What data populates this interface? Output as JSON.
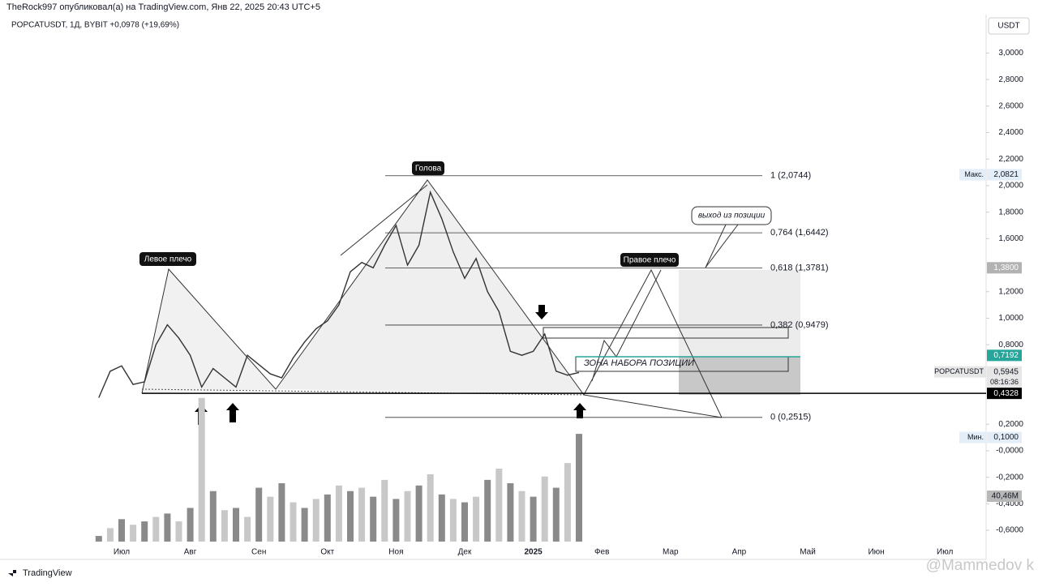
{
  "header": {
    "attribution": "TheRock997 опубликовал(а) на TradingView.com, Янв 22, 2025 20:43 UTC+5",
    "symbol_line": "POPCATUSDT, 1Д, BYBIT  +0,0978 (+19,69%)",
    "currency": "USDT"
  },
  "chart_data": {
    "type": "line",
    "categories": [
      null,
      null,
      "Июл",
      null,
      null,
      null,
      null,
      null,
      "Авг",
      null,
      null,
      null,
      null,
      null,
      "Сен",
      null,
      null,
      null,
      null,
      null,
      "Окт",
      null,
      null,
      null,
      null,
      null,
      "Ноя",
      null,
      null,
      null,
      null,
      null,
      "Дек",
      null,
      null,
      null,
      null,
      null,
      "2025",
      null,
      null,
      null,
      null,
      null,
      "Фев",
      null,
      null,
      null,
      null,
      null,
      "Мар",
      null,
      null,
      null,
      null,
      null,
      "Апр",
      null,
      null,
      null,
      null,
      null,
      "Май",
      null,
      null,
      null,
      null,
      null,
      "Июн",
      null,
      null,
      null,
      null,
      null,
      "Июл",
      null
    ],
    "series": [
      {
        "name": "POPCATUSDT",
        "color": "#333333",
        "values": [
          0.4,
          0.6,
          0.64,
          0.5,
          0.52,
          0.8,
          0.95,
          0.85,
          0.72,
          0.48,
          0.62,
          0.55,
          0.48,
          0.72,
          0.65,
          0.58,
          0.55,
          0.7,
          0.82,
          0.92,
          0.98,
          1.1,
          1.35,
          1.42,
          1.38,
          1.55,
          1.7,
          1.4,
          1.55,
          1.95,
          1.75,
          1.5,
          1.3,
          1.45,
          1.2,
          1.05,
          0.75,
          0.72,
          0.75,
          0.88,
          0.6,
          0.57,
          0.59,
          null,
          null,
          null,
          null,
          null,
          null,
          null,
          null,
          null,
          null,
          null,
          null,
          null,
          null,
          null,
          null,
          null,
          null,
          null,
          null,
          null,
          null,
          null,
          null,
          null,
          null,
          null,
          null,
          null,
          null,
          null,
          null,
          null
        ]
      },
      {
        "name": "Volume",
        "color": "#8a8a8a",
        "values": [
          5,
          12,
          20,
          15,
          18,
          22,
          25,
          18,
          30,
          128,
          45,
          28,
          30,
          22,
          48,
          40,
          52,
          35,
          30,
          38,
          42,
          50,
          45,
          48,
          40,
          55,
          38,
          45,
          50,
          60,
          42,
          38,
          35,
          40,
          55,
          65,
          52,
          45,
          40,
          58,
          48,
          70,
          96,
          null,
          null,
          null,
          null,
          null,
          null,
          null,
          null,
          null,
          null,
          null,
          null,
          null,
          null,
          null,
          null,
          null,
          null,
          null,
          null,
          null,
          null,
          null,
          null,
          null,
          null,
          null,
          null,
          null,
          null,
          null,
          null,
          null
        ]
      }
    ],
    "ylim": [
      -0.82,
      3.29
    ],
    "yticks": [
      {
        "value": 3.0,
        "label": "3,0000"
      },
      {
        "value": 2.8,
        "label": "2,8000"
      },
      {
        "value": 2.6,
        "label": "2,6000"
      },
      {
        "value": 2.4,
        "label": "2,4000"
      },
      {
        "value": 2.2,
        "label": "2,2000"
      },
      {
        "value": 2.0,
        "label": "2,0000"
      },
      {
        "value": 1.8,
        "label": "1,8000"
      },
      {
        "value": 1.6,
        "label": "1,6000"
      },
      {
        "value": 1.2,
        "label": "1,2000"
      },
      {
        "value": 1.0,
        "label": "1,0000"
      },
      {
        "value": 0.8,
        "label": "0,8000"
      },
      {
        "value": 0.2,
        "label": "0,2000"
      },
      {
        "value": 0,
        "label": "-0,0000"
      },
      {
        "value": -0.2,
        "label": "-0,2000"
      },
      {
        "value": -0.4,
        "label": "-0,4000"
      },
      {
        "value": -0.6,
        "label": "-0,6000"
      }
    ],
    "fib_levels": [
      {
        "value": 2.0744,
        "label": "1 (2,0744)"
      },
      {
        "value": 1.6442,
        "label": "0,764 (1,6442)"
      },
      {
        "value": 1.3781,
        "label": "0,618 (1,3781)"
      },
      {
        "value": 0.9479,
        "label": "0,382 (0,9479)"
      },
      {
        "value": 0.2515,
        "label": "0 (0,2515)"
      }
    ],
    "price_tags": [
      {
        "caption": "Макс.",
        "value": 2.0821,
        "label": "2,0821",
        "color": "#e3eef9"
      },
      {
        "value": 1.38,
        "label": "1,3800",
        "color": "#b2b2b2"
      },
      {
        "value": 0.7192,
        "label": "0,7192",
        "color": "#26a69a"
      },
      {
        "caption": "POPCATUSDT",
        "value": 0.5945,
        "label": "0,5945",
        "timer": "08:16:36",
        "color": "#e6e6e6"
      },
      {
        "value": 0.4328,
        "label": "0,4328",
        "color": "#000000"
      },
      {
        "caption": "Мин.",
        "value": 0.1,
        "label": "0,1000",
        "color": "#e3eef9"
      }
    ],
    "volume_tag": {
      "value": 40.46,
      "label": "40,46M"
    },
    "annotations": {
      "left_shoulder": "Левое плечо",
      "head": "Голова",
      "right_shoulder": "Правое плечо",
      "exit": "выход из позиции",
      "zone": "ЗОНА НАБОРА ПОЗИЦИИ"
    }
  },
  "footer": {
    "brand": "TradingView",
    "watermark": "@Mammedov k"
  }
}
